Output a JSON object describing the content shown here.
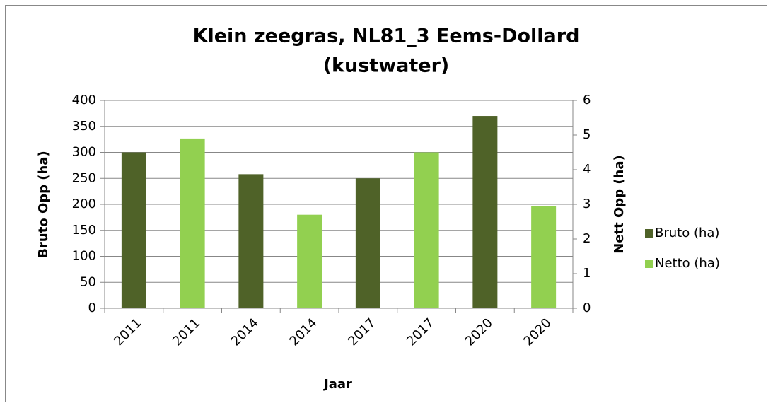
{
  "chart_data": {
    "type": "bar",
    "title": [
      "Klein zeegras, NL81_3 Eems-Dollard",
      "(kustwater)"
    ],
    "x_label": "Jaar",
    "y_label": "Bruto Opp (ha)",
    "y2_label": "Nett Opp (ha)",
    "categories": [
      "2011",
      "2011",
      "2014",
      "2014",
      "2017",
      "2017",
      "2020",
      "2020"
    ],
    "series": [
      {
        "name": "Bruto (ha)",
        "color": "#4f6228",
        "values": [
          300,
          null,
          258,
          null,
          250,
          null,
          370,
          null
        ]
      },
      {
        "name": "Netto (ha)",
        "color": "#92d050",
        "axis": "y2",
        "values": [
          null,
          4.9,
          null,
          2.7,
          null,
          4.5,
          null,
          2.95
        ]
      }
    ],
    "ylim": [
      0,
      400
    ],
    "yticks": [
      0,
      50,
      100,
      150,
      200,
      250,
      300,
      350,
      400
    ],
    "y2lim": [
      0,
      6
    ],
    "y2ticks": [
      0,
      1,
      2,
      3,
      4,
      5,
      6
    ],
    "grid": true,
    "legend": "right"
  }
}
